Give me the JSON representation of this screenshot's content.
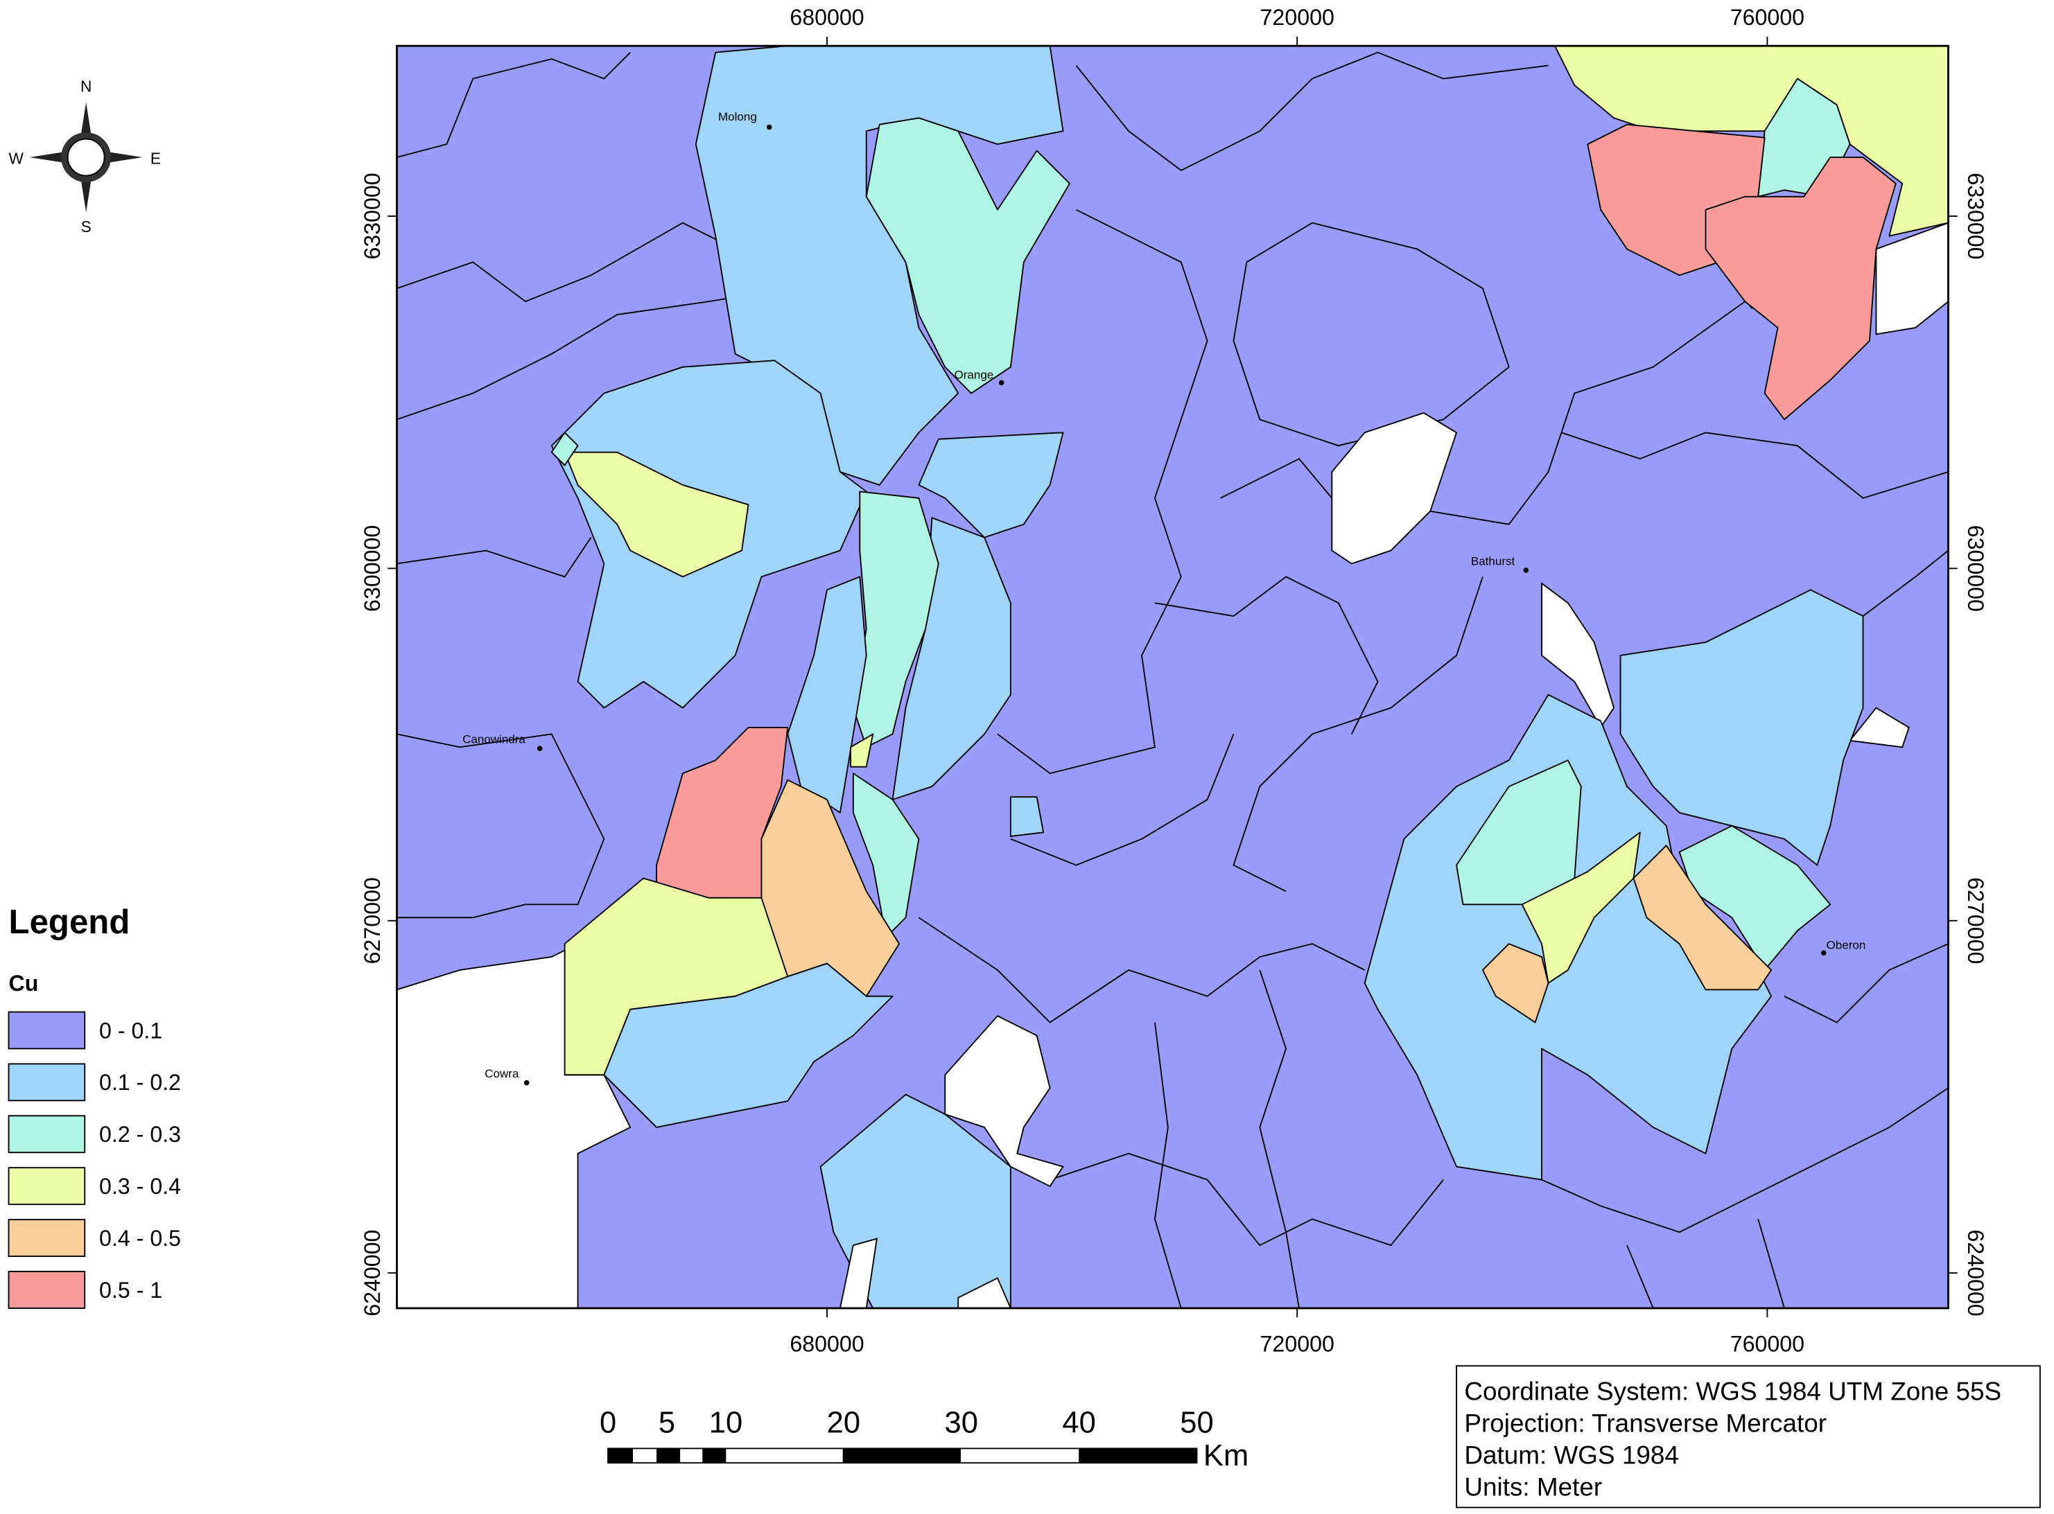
{
  "map": {
    "xlim": [
      643400,
      775400
    ],
    "ylim": [
      6237000,
      6344500
    ],
    "xticks": [
      680000,
      720000,
      760000
    ],
    "yticks": [
      6240000,
      6270000,
      6300000,
      6330000
    ]
  },
  "compass": {
    "n": "N",
    "e": "E",
    "s": "S",
    "w": "W"
  },
  "towns": [
    "Molong",
    "Orange",
    "Bathurst",
    "Canowindra",
    "Cowra",
    "Oberon"
  ],
  "legend": {
    "title": "Legend",
    "field": "Cu",
    "classes": [
      {
        "label": "0 - 0.1",
        "color": "#9a9cfb"
      },
      {
        "label": "0.1 - 0.2",
        "color": "#a0d4fb"
      },
      {
        "label": "0.2 - 0.3",
        "color": "#aef5e4"
      },
      {
        "label": "0.3 - 0.4",
        "color": "#eafca6"
      },
      {
        "label": "0.4 - 0.5",
        "color": "#fbcf99"
      },
      {
        "label": "0.5 - 1",
        "color": "#fa9c9c"
      }
    ]
  },
  "scale_bar": {
    "ticks": [
      0,
      5,
      10,
      20,
      30,
      40,
      50
    ],
    "unit": "Km"
  },
  "info": [
    "Coordinate System: WGS 1984 UTM Zone 55S",
    "Projection: Transverse Mercator",
    "Datum: WGS 1984",
    "Units: Meter"
  ]
}
